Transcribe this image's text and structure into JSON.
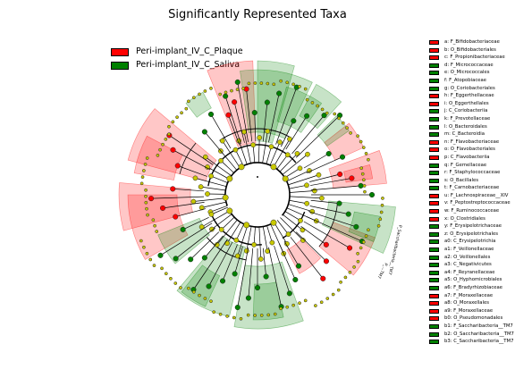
{
  "title": "Significantly Represented Taxa",
  "colors": {
    "plaque": "#ff0000",
    "saliva": "#008000",
    "node": "#c8c800"
  },
  "groups": [
    {
      "label": "Peri-implant_IV_C_Plaque",
      "color": "#ff0000"
    },
    {
      "label": "Peri-implant_IV_C_Saliva",
      "color": "#008000"
    }
  ],
  "taxa": [
    {
      "label": "a: F_Bifidobacteriaceae",
      "group": "plaque"
    },
    {
      "label": "b: O_Bifidobacteriales",
      "group": "plaque"
    },
    {
      "label": "c: F_Propionibacteriaceae",
      "group": "plaque"
    },
    {
      "label": "d: F_Micrococcaceae",
      "group": "saliva"
    },
    {
      "label": "e: O_Micrococcales",
      "group": "saliva"
    },
    {
      "label": "f: F_Atopobiaceae",
      "group": "saliva"
    },
    {
      "label": "g: O_Coriobacteriales",
      "group": "saliva"
    },
    {
      "label": "h: F_Eggerthellaceae",
      "group": "plaque"
    },
    {
      "label": "i: O_Eggerthellales",
      "group": "plaque"
    },
    {
      "label": "j: C_Coriobacteriia",
      "group": "saliva"
    },
    {
      "label": "k: F_Prevotellaceae",
      "group": "saliva"
    },
    {
      "label": "l: O_Bacteroidales",
      "group": "saliva"
    },
    {
      "label": "m: C_Bacteroidia",
      "group": "saliva"
    },
    {
      "label": "n: F_Flavobacteriaceae",
      "group": "plaque"
    },
    {
      "label": "o: O_Flavobacteriales",
      "group": "plaque"
    },
    {
      "label": "p: C_Flavobacteriia",
      "group": "plaque"
    },
    {
      "label": "q: F_Gemellaceae",
      "group": "saliva"
    },
    {
      "label": "r: F_Staphylococcaceae",
      "group": "saliva"
    },
    {
      "label": "s: O_Bacillales",
      "group": "saliva"
    },
    {
      "label": "t: F_Carnobacteriaceae",
      "group": "saliva"
    },
    {
      "label": "u: F_Lachnospiraceae__XIV",
      "group": "plaque"
    },
    {
      "label": "v: F_Peptostreptococcaceae",
      "group": "plaque"
    },
    {
      "label": "w: F_Ruminococcaceae",
      "group": "plaque"
    },
    {
      "label": "x: O_Clostridiales",
      "group": "plaque"
    },
    {
      "label": "y: F_Erysipelotrichaceae",
      "group": "saliva"
    },
    {
      "label": "z: O_Erysipelotrichales",
      "group": "saliva"
    },
    {
      "label": "a0: C_Erysipelotrichia",
      "group": "saliva"
    },
    {
      "label": "a1: F_Veillonellaceae",
      "group": "saliva"
    },
    {
      "label": "a2: O_Veillonellales",
      "group": "saliva"
    },
    {
      "label": "a3: C_Negativicutes",
      "group": "saliva"
    },
    {
      "label": "a4: F_Reyranellaceae",
      "group": "saliva"
    },
    {
      "label": "a5: O_Hyphomicrobiales",
      "group": "saliva"
    },
    {
      "label": "a6: F_Bradyrhizobiaceae",
      "group": "saliva"
    },
    {
      "label": "a7: F_Moraxellaceae",
      "group": "plaque"
    },
    {
      "label": "a8: O_Moraxellales",
      "group": "plaque"
    },
    {
      "label": "a9: F_Moraxellaceae",
      "group": "plaque"
    },
    {
      "label": "b0: O_Pseudomonadales",
      "group": "plaque"
    },
    {
      "label": "b1: F_Saccharibacteria__TM7",
      "group": "saliva"
    },
    {
      "label": "b2: O_Saccharibacteria__TM7",
      "group": "saliva"
    },
    {
      "label": "b3: C_Saccharibacteria__TM7",
      "group": "saliva"
    }
  ],
  "cladogram": {
    "outer_labels": [
      {
        "text": "P_Saccharibacteria__TM7",
        "angle": 12
      },
      {
        "text": "P_...TM7",
        "angle": 28
      }
    ]
  }
}
